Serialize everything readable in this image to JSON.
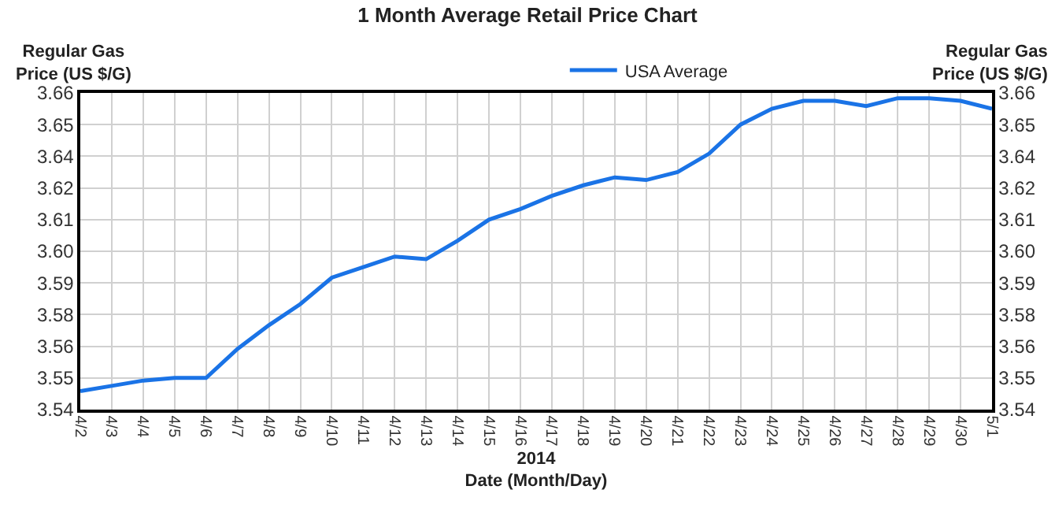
{
  "chart_data": {
    "type": "line",
    "title": "1 Month Average Retail Price Chart",
    "xlabel": "2014\nDate (Month/Day)",
    "ylabel": "Regular Gas\nPrice (US $/G)",
    "y2label": "Regular Gas\nPrice (US $/G)",
    "categories": [
      "4/2",
      "4/3",
      "4/4",
      "4/5",
      "4/6",
      "4/7",
      "4/8",
      "4/9",
      "4/10",
      "4/11",
      "4/12",
      "4/13",
      "4/14",
      "4/15",
      "4/16",
      "4/17",
      "4/18",
      "4/19",
      "4/20",
      "4/21",
      "4/22",
      "4/23",
      "4/24",
      "4/25",
      "4/26",
      "4/27",
      "4/28",
      "4/29",
      "4/30",
      "5/1"
    ],
    "series": [
      {
        "name": "USA Average",
        "color": "#1a73e6",
        "values": [
          3.547,
          3.549,
          3.551,
          3.552,
          3.552,
          3.563,
          3.572,
          3.58,
          3.59,
          3.594,
          3.598,
          3.597,
          3.604,
          3.612,
          3.616,
          3.621,
          3.625,
          3.628,
          3.627,
          3.63,
          3.637,
          3.648,
          3.654,
          3.657,
          3.657,
          3.655,
          3.658,
          3.658,
          3.657,
          3.654
        ]
      }
    ],
    "ylim": [
      3.54,
      3.66
    ],
    "yticks": [
      {
        "value": 3.54,
        "label": "3.54"
      },
      {
        "value": 3.552,
        "label": "3.55"
      },
      {
        "value": 3.564,
        "label": "3.56"
      },
      {
        "value": 3.576,
        "label": "3.58"
      },
      {
        "value": 3.588,
        "label": "3.59"
      },
      {
        "value": 3.6,
        "label": "3.60"
      },
      {
        "value": 3.612,
        "label": "3.61"
      },
      {
        "value": 3.624,
        "label": "3.62"
      },
      {
        "value": 3.636,
        "label": "3.64"
      },
      {
        "value": 3.648,
        "label": "3.65"
      },
      {
        "value": 3.66,
        "label": "3.66"
      }
    ],
    "y2lim": [
      3.54,
      3.66
    ],
    "y2ticks": [
      {
        "value": 3.54,
        "label": "3.54"
      },
      {
        "value": 3.552,
        "label": "3.55"
      },
      {
        "value": 3.564,
        "label": "3.56"
      },
      {
        "value": 3.576,
        "label": "3.58"
      },
      {
        "value": 3.588,
        "label": "3.59"
      },
      {
        "value": 3.6,
        "label": "3.60"
      },
      {
        "value": 3.612,
        "label": "3.61"
      },
      {
        "value": 3.624,
        "label": "3.62"
      },
      {
        "value": 3.636,
        "label": "3.64"
      },
      {
        "value": 3.648,
        "label": "3.65"
      },
      {
        "value": 3.66,
        "label": "3.66"
      }
    ],
    "grid": true,
    "legend": "top",
    "marker": "none",
    "line_style": "solid"
  }
}
